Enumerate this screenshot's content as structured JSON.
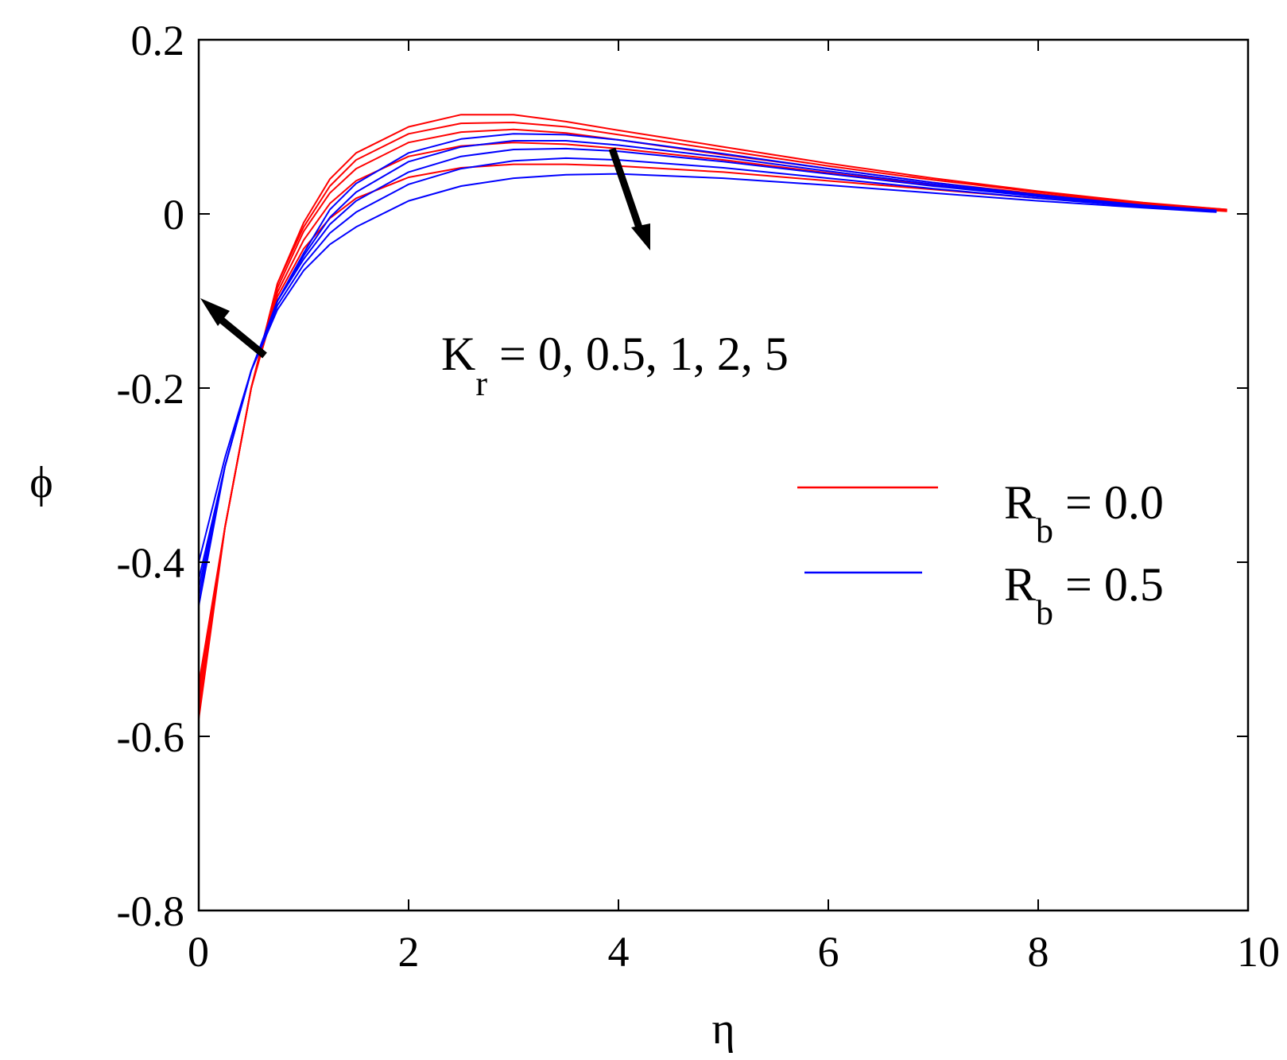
{
  "chart_data": {
    "type": "line",
    "xlabel": "η",
    "ylabel": "ϕ",
    "xlim": [
      0,
      10
    ],
    "ylim": [
      -0.8,
      0.2
    ],
    "xticks": [
      "0",
      "2",
      "4",
      "6",
      "8",
      "10"
    ],
    "yticks": [
      "0.2",
      "0",
      "-0.2",
      "-0.4",
      "-0.6",
      "-0.8"
    ],
    "annotation": {
      "main": "K",
      "sub": "r",
      "rest": " = 0, 0.5, 1, 2, 5"
    },
    "legend": {
      "placement": "right",
      "entries": [
        {
          "main": "R",
          "sub": "b",
          "rest": " = 0.0",
          "color": "#ff0000"
        },
        {
          "main": "R",
          "sub": "b",
          "rest": " = 0.5",
          "color": "#0000ff"
        }
      ]
    },
    "series": [
      {
        "group": 0,
        "color": "#ff0000",
        "x": [
          0,
          0.25,
          0.5,
          0.75,
          1.0,
          1.25,
          1.5,
          2.0,
          2.5,
          3.0,
          3.5,
          4.0,
          5.0,
          6.0,
          7.0,
          8.0,
          9.0,
          9.8
        ],
        "y": [
          -0.58,
          -0.36,
          -0.2,
          -0.08,
          -0.01,
          0.04,
          0.07,
          0.1,
          0.114,
          0.114,
          0.106,
          0.096,
          0.077,
          0.058,
          0.041,
          0.026,
          0.013,
          0.005
        ]
      },
      {
        "group": 0,
        "color": "#ff0000",
        "x": [
          0,
          0.25,
          0.5,
          0.75,
          1.0,
          1.25,
          1.5,
          2.0,
          2.5,
          3.0,
          3.5,
          4.0,
          5.0,
          6.0,
          7.0,
          8.0,
          9.0,
          9.8
        ],
        "y": [
          -0.57,
          -0.36,
          -0.2,
          -0.08,
          -0.015,
          0.032,
          0.062,
          0.092,
          0.104,
          0.105,
          0.1,
          0.091,
          0.073,
          0.055,
          0.039,
          0.025,
          0.012,
          0.005
        ]
      },
      {
        "group": 0,
        "color": "#ff0000",
        "x": [
          0,
          0.25,
          0.5,
          0.75,
          1.0,
          1.25,
          1.5,
          2.0,
          2.5,
          3.0,
          3.5,
          4.0,
          5.0,
          6.0,
          7.0,
          8.0,
          9.0,
          9.8
        ],
        "y": [
          -0.56,
          -0.36,
          -0.2,
          -0.085,
          -0.02,
          0.024,
          0.052,
          0.082,
          0.094,
          0.097,
          0.093,
          0.085,
          0.068,
          0.052,
          0.036,
          0.023,
          0.011,
          0.004
        ]
      },
      {
        "group": 0,
        "color": "#ff0000",
        "x": [
          0,
          0.25,
          0.5,
          0.75,
          1.0,
          1.25,
          1.5,
          2.0,
          2.5,
          3.0,
          3.5,
          4.0,
          5.0,
          6.0,
          7.0,
          8.0,
          9.0,
          9.8
        ],
        "y": [
          -0.55,
          -0.36,
          -0.2,
          -0.09,
          -0.03,
          0.012,
          0.038,
          0.066,
          0.078,
          0.082,
          0.08,
          0.075,
          0.062,
          0.047,
          0.033,
          0.021,
          0.01,
          0.004
        ]
      },
      {
        "group": 0,
        "color": "#ff0000",
        "x": [
          0,
          0.25,
          0.5,
          0.75,
          1.0,
          1.25,
          1.5,
          2.0,
          2.5,
          3.0,
          3.5,
          4.0,
          5.0,
          6.0,
          7.0,
          8.0,
          9.0,
          9.8
        ],
        "y": [
          -0.54,
          -0.36,
          -0.2,
          -0.095,
          -0.04,
          -0.005,
          0.018,
          0.042,
          0.053,
          0.057,
          0.057,
          0.055,
          0.048,
          0.038,
          0.028,
          0.018,
          0.009,
          0.003
        ]
      },
      {
        "group": 1,
        "color": "#0000ff",
        "x": [
          0,
          0.25,
          0.5,
          0.75,
          1.0,
          1.25,
          1.5,
          2.0,
          2.5,
          3.0,
          3.5,
          4.0,
          5.0,
          6.0,
          7.0,
          8.0,
          9.0,
          9.7
        ],
        "y": [
          -0.45,
          -0.29,
          -0.18,
          -0.1,
          -0.045,
          0.005,
          0.035,
          0.07,
          0.086,
          0.092,
          0.091,
          0.085,
          0.069,
          0.052,
          0.036,
          0.022,
          0.01,
          0.004
        ]
      },
      {
        "group": 1,
        "color": "#0000ff",
        "x": [
          0,
          0.25,
          0.5,
          0.75,
          1.0,
          1.25,
          1.5,
          2.0,
          2.5,
          3.0,
          3.5,
          4.0,
          5.0,
          6.0,
          7.0,
          8.0,
          9.0,
          9.7
        ],
        "y": [
          -0.44,
          -0.29,
          -0.18,
          -0.1,
          -0.048,
          -0.004,
          0.025,
          0.06,
          0.077,
          0.084,
          0.084,
          0.079,
          0.065,
          0.049,
          0.034,
          0.021,
          0.01,
          0.004
        ]
      },
      {
        "group": 1,
        "color": "#0000ff",
        "x": [
          0,
          0.25,
          0.5,
          0.75,
          1.0,
          1.25,
          1.5,
          2.0,
          2.5,
          3.0,
          3.5,
          4.0,
          5.0,
          6.0,
          7.0,
          8.0,
          9.0,
          9.7
        ],
        "y": [
          -0.43,
          -0.29,
          -0.18,
          -0.1,
          -0.052,
          -0.012,
          0.015,
          0.048,
          0.066,
          0.074,
          0.075,
          0.072,
          0.06,
          0.046,
          0.032,
          0.02,
          0.009,
          0.003
        ]
      },
      {
        "group": 1,
        "color": "#0000ff",
        "x": [
          0,
          0.25,
          0.5,
          0.75,
          1.0,
          1.25,
          1.5,
          2.0,
          2.5,
          3.0,
          3.5,
          4.0,
          5.0,
          6.0,
          7.0,
          8.0,
          9.0,
          9.7
        ],
        "y": [
          -0.42,
          -0.29,
          -0.18,
          -0.105,
          -0.058,
          -0.022,
          0.002,
          0.034,
          0.052,
          0.061,
          0.064,
          0.062,
          0.053,
          0.041,
          0.029,
          0.018,
          0.008,
          0.003
        ]
      },
      {
        "group": 1,
        "color": "#0000ff",
        "x": [
          0,
          0.25,
          0.5,
          0.75,
          1.0,
          1.25,
          1.5,
          2.0,
          2.5,
          3.0,
          3.5,
          4.0,
          5.0,
          6.0,
          7.0,
          8.0,
          9.0,
          9.7
        ],
        "y": [
          -0.4,
          -0.28,
          -0.18,
          -0.11,
          -0.065,
          -0.035,
          -0.015,
          0.015,
          0.032,
          0.041,
          0.045,
          0.046,
          0.041,
          0.033,
          0.024,
          0.015,
          0.007,
          0.002
        ]
      }
    ]
  }
}
